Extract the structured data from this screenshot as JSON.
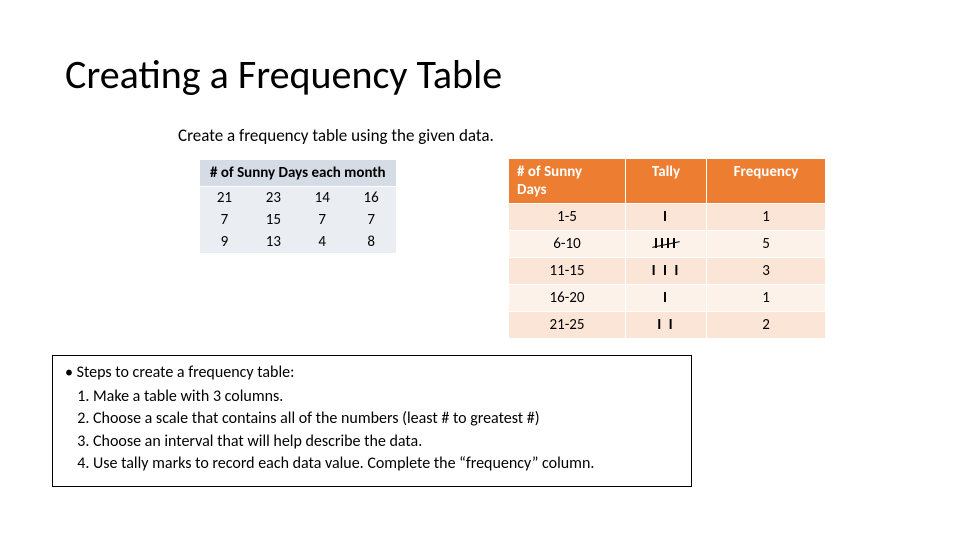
{
  "title": "Creating a Frequency Table",
  "subtitle": "Create a frequency table using the given data.",
  "data_table": {
    "header": "# of Sunny Days each month",
    "header_bg": "#d6dce5",
    "cell_bg": "#eaeef3",
    "rows": [
      [
        "21",
        "23",
        "14",
        "16"
      ],
      [
        "7",
        "15",
        "7",
        "7"
      ],
      [
        "9",
        "13",
        "4",
        "8"
      ]
    ]
  },
  "freq_table": {
    "header_bg": "#ed7d31",
    "header_color": "#ffffff",
    "band_colors": [
      "#fbe5d6",
      "#fdf2ea"
    ],
    "columns": [
      "# of Sunny Days",
      "Tally",
      "Frequency"
    ],
    "rows": [
      {
        "range": "1-5",
        "tally_display": "I",
        "tally_five": false,
        "frequency": "1"
      },
      {
        "range": "6-10",
        "tally_display": "IIII",
        "tally_five": true,
        "frequency": "5"
      },
      {
        "range": "11-15",
        "tally_display": "I I I",
        "tally_five": false,
        "frequency": "3"
      },
      {
        "range": "16-20",
        "tally_display": "I",
        "tally_five": false,
        "frequency": "1"
      },
      {
        "range": "21-25",
        "tally_display": "I I",
        "tally_five": false,
        "frequency": "2"
      }
    ]
  },
  "steps": {
    "heading": "Steps to create a frequency table:",
    "items": [
      "Make a table with 3 columns.",
      "Choose a scale that contains all of the numbers (least # to greatest #)",
      "Choose an interval that will help describe the data.",
      "Use tally marks to record each data value. Complete the “frequency” column."
    ]
  }
}
